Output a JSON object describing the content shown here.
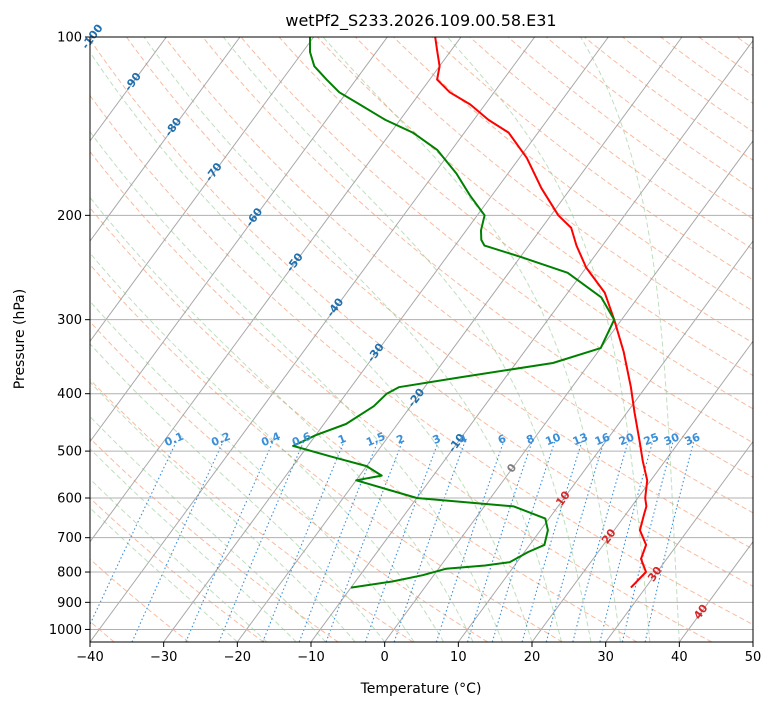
{
  "chart_data": {
    "type": "line",
    "subtype": "skew-T log-P diagram",
    "title": "wetPf2_S233.2026.109.00.58.E31",
    "xlabel": "Temperature (°C)",
    "ylabel": "Pressure (hPa)",
    "xlim": [
      -40,
      50
    ],
    "ylim": [
      1050,
      100
    ],
    "x_ticks": [
      -40,
      -30,
      -20,
      -10,
      0,
      10,
      20,
      30,
      40,
      50
    ],
    "x_tick_labels": [
      "−40",
      "−30",
      "−20",
      "−10",
      "0",
      "10",
      "20",
      "30",
      "40",
      "50"
    ],
    "y_ticks": [
      100,
      200,
      300,
      400,
      500,
      600,
      700,
      800,
      900,
      1000
    ],
    "y_tick_labels": [
      "100",
      "200",
      "300",
      "400",
      "500",
      "600",
      "700",
      "800",
      "900",
      "1000"
    ],
    "grid": true,
    "series": [
      {
        "name": "Temperature",
        "color": "#ff0000",
        "points": [
          [
            28.0,
            850
          ],
          [
            28.5,
            800
          ],
          [
            26.5,
            760
          ],
          [
            25.8,
            720
          ],
          [
            23.5,
            680
          ],
          [
            22.5,
            640
          ],
          [
            22.0,
            620
          ],
          [
            21.0,
            600
          ],
          [
            19.5,
            560
          ],
          [
            17.0,
            520
          ],
          [
            14.5,
            480
          ],
          [
            11.0,
            430
          ],
          [
            8.0,
            390
          ],
          [
            3.5,
            340
          ],
          [
            -1.0,
            300
          ],
          [
            -5.0,
            270
          ],
          [
            -10.0,
            245
          ],
          [
            -13.5,
            225
          ],
          [
            -16.0,
            210
          ],
          [
            -19.0,
            200
          ],
          [
            -24.0,
            180
          ],
          [
            -29.0,
            160
          ],
          [
            -34.0,
            145
          ],
          [
            -38.0,
            138
          ],
          [
            -42.0,
            130
          ],
          [
            -46.0,
            124
          ],
          [
            -49.0,
            118
          ],
          [
            -50.0,
            112
          ],
          [
            -52.0,
            105
          ],
          [
            -53.5,
            100
          ]
        ]
      },
      {
        "name": "Dewpoint",
        "color": "#008000",
        "points": [
          [
            -10.0,
            850
          ],
          [
            -5.0,
            830
          ],
          [
            -1.5,
            810
          ],
          [
            1.0,
            790
          ],
          [
            6.0,
            780
          ],
          [
            9.0,
            770
          ],
          [
            10.5,
            740
          ],
          [
            12.0,
            720
          ],
          [
            11.0,
            680
          ],
          [
            9.5,
            650
          ],
          [
            4.0,
            620
          ],
          [
            -10.0,
            600
          ],
          [
            -20.0,
            560
          ],
          [
            -17.0,
            550
          ],
          [
            -20.0,
            530
          ],
          [
            -26.0,
            510
          ],
          [
            -32.0,
            490
          ],
          [
            -30.0,
            470
          ],
          [
            -27.0,
            450
          ],
          [
            -25.0,
            420
          ],
          [
            -24.5,
            400
          ],
          [
            -23.5,
            390
          ],
          [
            -16.0,
            375
          ],
          [
            -5.0,
            355
          ],
          [
            0.0,
            335
          ],
          [
            -1.0,
            300
          ],
          [
            -5.0,
            275
          ],
          [
            -12.0,
            250
          ],
          [
            -20.0,
            235
          ],
          [
            -26.0,
            225
          ],
          [
            -27.0,
            220
          ],
          [
            -28.0,
            212
          ],
          [
            -29.0,
            200
          ],
          [
            -33.0,
            185
          ],
          [
            -37.0,
            170
          ],
          [
            -42.0,
            155
          ],
          [
            -47.0,
            145
          ],
          [
            -52.0,
            138
          ],
          [
            -57.0,
            130
          ],
          [
            -61.0,
            124
          ],
          [
            -64.0,
            118
          ],
          [
            -67.0,
            112
          ],
          [
            -69.0,
            106
          ],
          [
            -70.5,
            100
          ]
        ]
      }
    ],
    "background_lines": {
      "dry_adiabats_labels": [
        "-100",
        "-90",
        "-80",
        "-70",
        "-60",
        "-50",
        "-40",
        "-30",
        "-20",
        "-10",
        "0",
        "10",
        "20",
        "30",
        "40"
      ],
      "mixing_ratio_labels": [
        "0.1",
        "0.2",
        "0.4",
        "0.6",
        "1",
        "1.5",
        "2",
        "3",
        "4",
        "6",
        "8",
        "10",
        "13",
        "16",
        "20",
        "25",
        "30",
        "36"
      ]
    }
  }
}
